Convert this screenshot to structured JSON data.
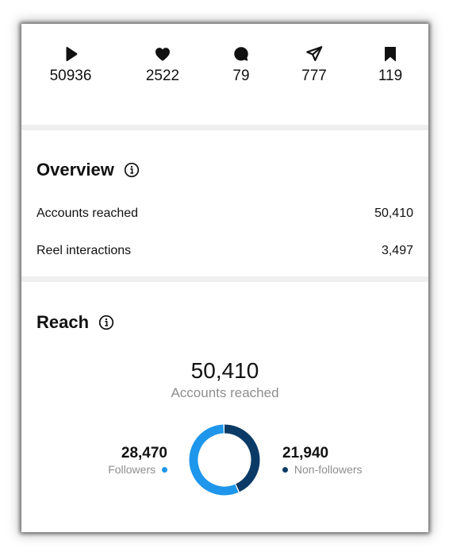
{
  "stats": [
    {
      "icon": "play-icon",
      "value": "50936"
    },
    {
      "icon": "heart-icon",
      "value": "2522"
    },
    {
      "icon": "comment-icon",
      "value": "79"
    },
    {
      "icon": "share-icon",
      "value": "777"
    },
    {
      "icon": "bookmark-icon",
      "value": "119"
    }
  ],
  "overview": {
    "title": "Overview",
    "rows": [
      {
        "label": "Accounts reached",
        "value": "50,410"
      },
      {
        "label": "Reel interactions",
        "value": "3,497"
      }
    ]
  },
  "reach": {
    "title": "Reach",
    "total": "50,410",
    "total_label": "Accounts reached",
    "followers": {
      "value": "28,470",
      "label": "Followers",
      "count": 28470,
      "color": "#1e96eb"
    },
    "non_followers": {
      "value": "21,940",
      "label": "Non-followers",
      "count": 21940,
      "color": "#0b3a66"
    }
  }
}
